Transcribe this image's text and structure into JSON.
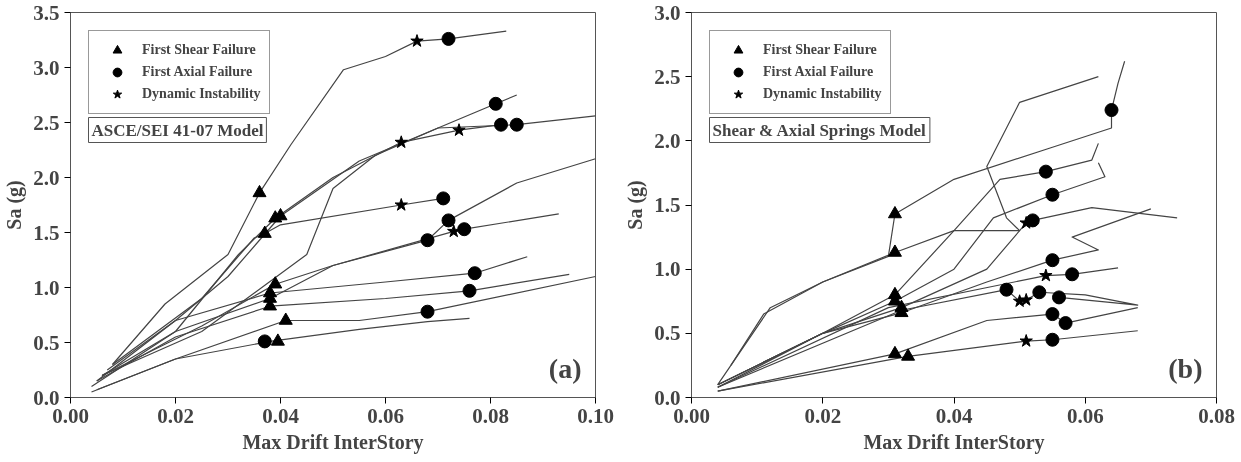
{
  "chart_data": [
    {
      "type": "scatter",
      "xlabel": "Max Drift InterStory",
      "ylabel": "Sa (g)",
      "xlim": [
        0,
        0.1
      ],
      "ylim": [
        0,
        3.5
      ],
      "xticks": [
        {
          "value": 0,
          "label": "0.00"
        },
        {
          "value": 0.02,
          "label": "0.02"
        },
        {
          "value": 0.04,
          "label": "0.04"
        },
        {
          "value": 0.06,
          "label": "0.06"
        },
        {
          "value": 0.08,
          "label": "0.08"
        },
        {
          "value": 0.1,
          "label": "0.10"
        }
      ],
      "yticks": [
        {
          "value": 0,
          "label": "0.0"
        },
        {
          "value": 0.5,
          "label": "0.5"
        },
        {
          "value": 1,
          "label": "1.0"
        },
        {
          "value": 1.5,
          "label": "1.5"
        },
        {
          "value": 2,
          "label": "2.0"
        },
        {
          "value": 2.5,
          "label": "2.5"
        },
        {
          "value": 3,
          "label": "3.0"
        },
        {
          "value": 3.5,
          "label": "3.5"
        }
      ],
      "grid": false,
      "legend": "top left",
      "line_style": "solid",
      "annotations": [
        "ASCE/SEI 41-07 Model",
        "(a)"
      ],
      "series": [
        {
          "type": "line",
          "color": "#444444",
          "x": [
            0.008,
            0.018,
            0.03,
            0.036,
            0.042,
            0.052,
            0.06,
            0.066,
            0.072,
            0.083
          ],
          "values": [
            0.3,
            0.85,
            1.3,
            1.86,
            2.3,
            2.98,
            3.1,
            3.24,
            3.26,
            3.33
          ]
        },
        {
          "type": "line",
          "color": "#444444",
          "x": [
            0.005,
            0.02,
            0.03,
            0.04,
            0.055,
            0.07,
            0.081,
            0.085
          ],
          "values": [
            0.15,
            0.7,
            1.1,
            1.65,
            2.15,
            2.45,
            2.67,
            2.75
          ]
        },
        {
          "type": "line",
          "color": "#444444",
          "x": [
            0.006,
            0.02,
            0.032,
            0.039,
            0.05,
            0.063,
            0.074,
            0.082
          ],
          "values": [
            0.2,
            0.6,
            1.3,
            1.63,
            2.0,
            2.32,
            2.43,
            2.48
          ]
        },
        {
          "type": "line",
          "color": "#444444",
          "x": [
            0.006,
            0.025,
            0.045,
            0.05,
            0.058,
            0.07,
            0.085,
            0.1
          ],
          "values": [
            0.2,
            0.6,
            1.3,
            1.9,
            2.2,
            2.45,
            2.48,
            2.56
          ]
        },
        {
          "type": "line",
          "color": "#444444",
          "x": [
            0.008,
            0.025,
            0.035,
            0.037,
            0.04,
            0.063,
            0.071
          ],
          "values": [
            0.3,
            0.9,
            1.45,
            1.49,
            1.57,
            1.75,
            1.81
          ]
        },
        {
          "type": "line",
          "color": "#444444",
          "x": [
            0.004,
            0.02,
            0.038,
            0.05,
            0.068,
            0.072,
            0.085,
            0.1
          ],
          "values": [
            0.1,
            0.6,
            0.9,
            1.2,
            1.43,
            1.61,
            1.95,
            2.17
          ]
        },
        {
          "type": "line",
          "color": "#444444",
          "x": [
            0.006,
            0.025,
            0.039,
            0.05,
            0.073,
            0.075,
            0.093
          ],
          "values": [
            0.2,
            0.65,
            1.03,
            1.2,
            1.51,
            1.53,
            1.67
          ]
        },
        {
          "type": "line",
          "color": "#444444",
          "x": [
            0.007,
            0.02,
            0.038,
            0.06,
            0.077,
            0.087
          ],
          "values": [
            0.25,
            0.7,
            0.95,
            1.05,
            1.13,
            1.28
          ]
        },
        {
          "type": "line",
          "color": "#444444",
          "x": [
            0.005,
            0.02,
            0.038,
            0.06,
            0.076,
            0.095
          ],
          "values": [
            0.15,
            0.55,
            0.83,
            0.9,
            0.97,
            1.12
          ]
        },
        {
          "type": "line",
          "color": "#444444",
          "x": [
            0.004,
            0.02,
            0.041,
            0.055,
            0.068,
            0.1
          ],
          "values": [
            0.05,
            0.35,
            0.7,
            0.7,
            0.78,
            1.1
          ]
        },
        {
          "type": "line",
          "color": "#444444",
          "x": [
            0.005,
            0.02,
            0.038,
            0.055,
            0.068,
            0.076
          ],
          "values": [
            0.07,
            0.35,
            0.51,
            0.62,
            0.69,
            0.72
          ]
        },
        {
          "type": "scatter",
          "name": "First Shear Failure",
          "marker": "triangle",
          "color": "#000000",
          "x": [
            0.036,
            0.039,
            0.04,
            0.037,
            0.039,
            0.038,
            0.038,
            0.038,
            0.041,
            0.0395
          ],
          "values": [
            1.86,
            1.63,
            1.65,
            1.49,
            1.03,
            0.95,
            0.9,
            0.83,
            0.7,
            0.51
          ]
        },
        {
          "type": "scatter",
          "name": "First Axial Failure",
          "marker": "circle",
          "color": "#000000",
          "x": [
            0.072,
            0.081,
            0.082,
            0.085,
            0.071,
            0.072,
            0.075,
            0.068,
            0.077,
            0.076,
            0.068,
            0.037
          ],
          "values": [
            3.26,
            2.67,
            2.48,
            2.48,
            1.81,
            1.61,
            1.53,
            1.43,
            1.13,
            0.97,
            0.78,
            0.51
          ]
        },
        {
          "type": "scatter",
          "name": "Dynamic Instability",
          "marker": "star",
          "color": "#000000",
          "x": [
            0.066,
            0.063,
            0.074,
            0.063,
            0.073
          ],
          "values": [
            3.24,
            2.32,
            2.43,
            1.75,
            1.51
          ]
        }
      ]
    },
    {
      "type": "scatter",
      "xlabel": "Max Drift InterStory",
      "ylabel": "Sa (g)",
      "xlim": [
        0,
        0.08
      ],
      "ylim": [
        0,
        3.0
      ],
      "xticks": [
        {
          "value": 0,
          "label": "0.00"
        },
        {
          "value": 0.02,
          "label": "0.02"
        },
        {
          "value": 0.04,
          "label": "0.04"
        },
        {
          "value": 0.06,
          "label": "0.06"
        },
        {
          "value": 0.08,
          "label": "0.08"
        }
      ],
      "yticks": [
        {
          "value": 0,
          "label": "0.0"
        },
        {
          "value": 0.5,
          "label": "0.5"
        },
        {
          "value": 1,
          "label": "1.0"
        },
        {
          "value": 1.5,
          "label": "1.5"
        },
        {
          "value": 2,
          "label": "2.0"
        },
        {
          "value": 2.5,
          "label": "2.5"
        },
        {
          "value": 3,
          "label": "3.0"
        }
      ],
      "grid": false,
      "legend": "top left",
      "line_style": "solid",
      "annotations": [
        "Shear & Axial Springs Model",
        "(b)"
      ],
      "series": [
        {
          "type": "line",
          "color": "#444444",
          "x": [
            0.006,
            0.011,
            0.02,
            0.03,
            0.031,
            0.04,
            0.055,
            0.064,
            0.064,
            0.064,
            0.065,
            0.066
          ],
          "values": [
            0.25,
            0.65,
            0.9,
            1.1,
            1.43,
            1.7,
            1.95,
            2.1,
            2.2,
            2.24,
            2.45,
            2.62
          ]
        },
        {
          "type": "line",
          "color": "#444444",
          "x": [
            0.004,
            0.012,
            0.02,
            0.031,
            0.04,
            0.05,
            0.048,
            0.045,
            0.05,
            0.062
          ],
          "values": [
            0.1,
            0.7,
            0.9,
            1.13,
            1.3,
            1.3,
            1.4,
            1.8,
            2.3,
            2.5
          ]
        },
        {
          "type": "line",
          "color": "#444444",
          "x": [
            0.004,
            0.02,
            0.031,
            0.04,
            0.047,
            0.054,
            0.061,
            0.062
          ],
          "values": [
            0.1,
            0.5,
            0.8,
            1.3,
            1.7,
            1.76,
            1.85,
            1.98
          ]
        },
        {
          "type": "line",
          "color": "#444444",
          "x": [
            0.004,
            0.02,
            0.031,
            0.04,
            0.046,
            0.055,
            0.063,
            0.062
          ],
          "values": [
            0.1,
            0.5,
            0.75,
            1.0,
            1.4,
            1.58,
            1.72,
            1.83
          ]
        },
        {
          "type": "line",
          "color": "#444444",
          "x": [
            0.004,
            0.02,
            0.032,
            0.045,
            0.051,
            0.052,
            0.061,
            0.074
          ],
          "values": [
            0.1,
            0.5,
            0.7,
            1.0,
            1.36,
            1.38,
            1.48,
            1.4
          ]
        },
        {
          "type": "line",
          "color": "#444444",
          "x": [
            0.004,
            0.02,
            0.032,
            0.045,
            0.055,
            0.062,
            0.058,
            0.07
          ],
          "values": [
            0.08,
            0.5,
            0.66,
            0.9,
            1.07,
            1.15,
            1.25,
            1.47
          ]
        },
        {
          "type": "line",
          "color": "#444444",
          "x": [
            0.004,
            0.03,
            0.054,
            0.058,
            0.065
          ],
          "values": [
            0.08,
            0.7,
            0.95,
            0.96,
            1.01
          ]
        },
        {
          "type": "line",
          "color": "#444444",
          "x": [
            0.004,
            0.032,
            0.048,
            0.05,
            0.051,
            0.053,
            0.06,
            0.068,
            0.056
          ],
          "values": [
            0.08,
            0.68,
            0.84,
            0.75,
            0.76,
            0.82,
            0.8,
            0.72,
            0.78
          ]
        },
        {
          "type": "line",
          "color": "#444444",
          "x": [
            0.004,
            0.031,
            0.045,
            0.055,
            0.057,
            0.068
          ],
          "values": [
            0.05,
            0.34,
            0.6,
            0.65,
            0.58,
            0.7
          ]
        },
        {
          "type": "line",
          "color": "#444444",
          "x": [
            0.004,
            0.033,
            0.051,
            0.055,
            0.068
          ],
          "values": [
            0.05,
            0.32,
            0.44,
            0.45,
            0.52
          ]
        },
        {
          "type": "scatter",
          "name": "First Shear Failure",
          "marker": "triangle",
          "color": "#000000",
          "x": [
            0.031,
            0.031,
            0.031,
            0.031,
            0.032,
            0.032,
            0.031,
            0.033
          ],
          "values": [
            1.43,
            1.13,
            0.8,
            0.75,
            0.7,
            0.66,
            0.34,
            0.32
          ]
        },
        {
          "type": "scatter",
          "name": "First Axial Failure",
          "marker": "circle",
          "color": "#000000",
          "x": [
            0.064,
            0.054,
            0.055,
            0.052,
            0.055,
            0.058,
            0.048,
            0.053,
            0.056,
            0.055,
            0.057,
            0.055
          ],
          "values": [
            2.24,
            1.76,
            1.58,
            1.38,
            1.07,
            0.96,
            0.84,
            0.82,
            0.78,
            0.65,
            0.58,
            0.45
          ]
        },
        {
          "type": "scatter",
          "name": "Dynamic Instability",
          "marker": "star",
          "color": "#000000",
          "x": [
            0.051,
            0.054,
            0.05,
            0.051,
            0.051
          ],
          "values": [
            1.36,
            0.95,
            0.75,
            0.76,
            0.44
          ]
        }
      ]
    }
  ]
}
